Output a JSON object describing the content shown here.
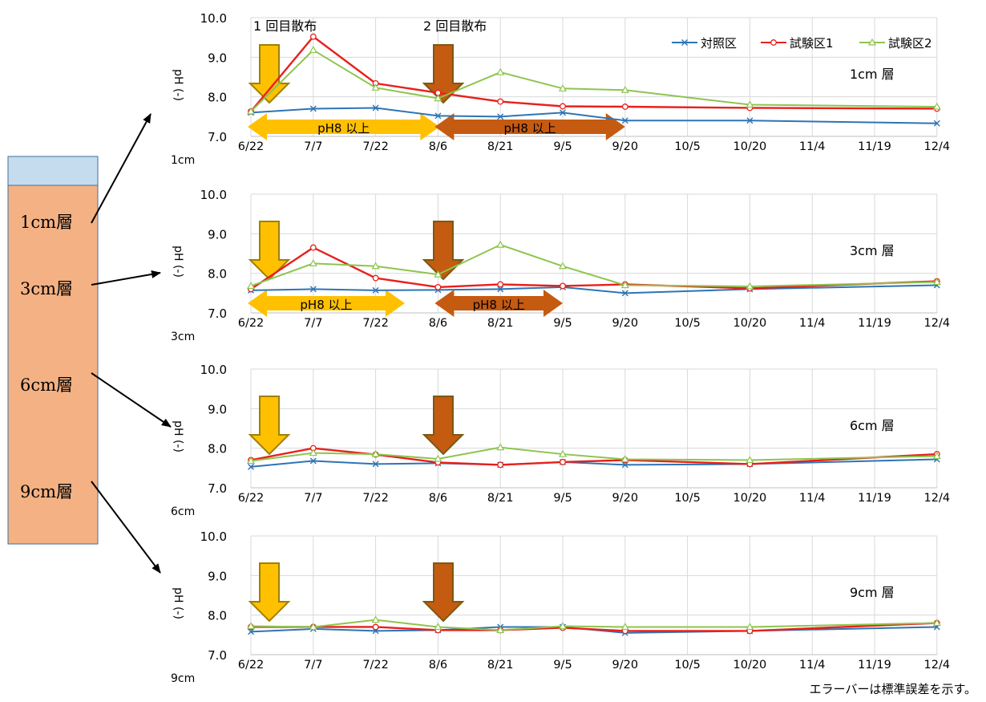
{
  "figure": {
    "legend": [
      {
        "name": "対照区",
        "color": "#2e74b5",
        "marker": "x"
      },
      {
        "name": "試験区1",
        "color": "#e8201c",
        "marker": "circle"
      },
      {
        "name": "試験区2",
        "color": "#8ec44e",
        "marker": "triangle"
      }
    ],
    "footnote": "エラーバーは標準誤差を示す。",
    "application_labels": [
      "1 回目散布",
      "2 回目散布"
    ],
    "ylabel": "pH (-)",
    "arrow_colors": {
      "first": "#ffc000",
      "first_outline": "#a08000",
      "second": "#c55a11",
      "second_outline": "#7a5a10"
    },
    "column": {
      "top_color": "#c5dcee",
      "body_color": "#f4b183",
      "border": "#41719c",
      "layers": [
        "1cm層",
        "3cm層",
        "6cm層",
        "9cm層"
      ]
    }
  },
  "chart_data": [
    {
      "type": "line",
      "panel_label": "1cm",
      "layer_title": "1cm 層",
      "categories": [
        "6/22",
        "7/7",
        "7/22",
        "8/6",
        "8/21",
        "9/5",
        "9/20",
        "10/5",
        "10/20",
        "11/4",
        "11/19",
        "12/4"
      ],
      "ylim": [
        7.0,
        10.0
      ],
      "yticks": [
        "7.0",
        "8.0",
        "9.0",
        "10.0"
      ],
      "ylabel": "pH (-)",
      "grid": true,
      "legend_position": "top-right",
      "series": [
        {
          "name": "対照区",
          "x": [
            0,
            1,
            2,
            3,
            4,
            5,
            6,
            8,
            11
          ],
          "values": [
            7.6,
            7.7,
            7.72,
            7.52,
            7.5,
            7.6,
            7.4,
            7.4,
            7.33
          ]
        },
        {
          "name": "試験区1",
          "x": [
            0,
            1,
            2,
            3,
            4,
            5,
            6,
            8,
            11
          ],
          "values": [
            7.63,
            9.52,
            8.34,
            8.1,
            7.88,
            7.76,
            7.75,
            7.72,
            7.7
          ]
        },
        {
          "name": "試験区2",
          "x": [
            0,
            1,
            2,
            3,
            4,
            5,
            6,
            8,
            11
          ],
          "values": [
            7.63,
            9.18,
            8.23,
            7.96,
            8.62,
            8.21,
            8.17,
            7.8,
            7.75
          ]
        }
      ],
      "ph8_bands": [
        {
          "label": "pH8 以上",
          "from": "6/22",
          "to": "8/6",
          "color": "#ffc000"
        },
        {
          "label": "pH8 以上",
          "from": "8/6",
          "to": "9/20",
          "color": "#c55a11"
        }
      ]
    },
    {
      "type": "line",
      "panel_label": "3cm",
      "layer_title": "3cm 層",
      "categories": [
        "6/22",
        "7/7",
        "7/22",
        "8/6",
        "8/21",
        "9/5",
        "9/20",
        "10/5",
        "10/20",
        "11/4",
        "11/19",
        "12/4"
      ],
      "ylim": [
        7.0,
        10.0
      ],
      "yticks": [
        "7.0",
        "8.0",
        "9.0",
        "10.0"
      ],
      "ylabel": "pH (-)",
      "grid": true,
      "series": [
        {
          "name": "対照区",
          "x": [
            0,
            1,
            2,
            3,
            4,
            5,
            6,
            8,
            11
          ],
          "values": [
            7.57,
            7.6,
            7.57,
            7.58,
            7.6,
            7.65,
            7.5,
            7.6,
            7.7
          ]
        },
        {
          "name": "試験区1",
          "x": [
            0,
            1,
            2,
            3,
            4,
            5,
            6,
            8,
            11
          ],
          "values": [
            7.6,
            8.65,
            7.88,
            7.65,
            7.72,
            7.68,
            7.72,
            7.62,
            7.8
          ]
        },
        {
          "name": "試験区2",
          "x": [
            0,
            1,
            2,
            3,
            4,
            5,
            6,
            8,
            11
          ],
          "values": [
            7.68,
            8.25,
            8.18,
            7.97,
            8.72,
            8.18,
            7.7,
            7.67,
            7.78
          ]
        }
      ],
      "ph8_bands": [
        {
          "label": "pH8 以上",
          "from": "6/22",
          "to": "7/29",
          "color": "#ffc000"
        },
        {
          "label": "pH8 以上",
          "from": "8/6",
          "to": "9/5",
          "color": "#c55a11"
        }
      ]
    },
    {
      "type": "line",
      "panel_label": "6cm",
      "layer_title": "6cm 層",
      "categories": [
        "6/22",
        "7/7",
        "7/22",
        "8/6",
        "8/21",
        "9/5",
        "9/20",
        "10/5",
        "10/20",
        "11/4",
        "11/19",
        "12/4"
      ],
      "ylim": [
        7.0,
        10.0
      ],
      "yticks": [
        "7.0",
        "8.0",
        "9.0",
        "10.0"
      ],
      "ylabel": "pH (-)",
      "grid": true,
      "series": [
        {
          "name": "対照区",
          "x": [
            0,
            1,
            2,
            3,
            4,
            5,
            6,
            8,
            11
          ],
          "values": [
            7.53,
            7.68,
            7.6,
            7.62,
            7.58,
            7.65,
            7.58,
            7.6,
            7.72
          ]
        },
        {
          "name": "試験区1",
          "x": [
            0,
            1,
            2,
            3,
            4,
            5,
            6,
            8,
            11
          ],
          "values": [
            7.7,
            8.0,
            7.84,
            7.64,
            7.58,
            7.65,
            7.7,
            7.6,
            7.85
          ]
        },
        {
          "name": "試験区2",
          "x": [
            0,
            1,
            2,
            3,
            4,
            5,
            6,
            8,
            11
          ],
          "values": [
            7.68,
            7.88,
            7.85,
            7.73,
            8.02,
            7.85,
            7.72,
            7.7,
            7.8
          ]
        }
      ]
    },
    {
      "type": "line",
      "panel_label": "9cm",
      "layer_title": "9cm 層",
      "categories": [
        "6/22",
        "7/7",
        "7/22",
        "8/6",
        "8/21",
        "9/5",
        "9/20",
        "10/5",
        "10/20",
        "11/4",
        "11/19",
        "12/4"
      ],
      "ylim": [
        7.0,
        10.0
      ],
      "yticks": [
        "7.0",
        "8.0",
        "9.0",
        "10.0"
      ],
      "ylabel": "pH (-)",
      "grid": true,
      "series": [
        {
          "name": "対照区",
          "x": [
            0,
            1,
            2,
            3,
            4,
            5,
            6,
            8,
            11
          ],
          "values": [
            7.58,
            7.65,
            7.6,
            7.62,
            7.7,
            7.7,
            7.55,
            7.6,
            7.7
          ]
        },
        {
          "name": "試験区1",
          "x": [
            0,
            1,
            2,
            3,
            4,
            5,
            6,
            8,
            11
          ],
          "values": [
            7.7,
            7.7,
            7.7,
            7.62,
            7.62,
            7.68,
            7.6,
            7.6,
            7.8
          ]
        },
        {
          "name": "試験区2",
          "x": [
            0,
            1,
            2,
            3,
            4,
            5,
            6,
            8,
            11
          ],
          "values": [
            7.72,
            7.7,
            7.88,
            7.7,
            7.62,
            7.72,
            7.7,
            7.7,
            7.8
          ]
        }
      ]
    }
  ]
}
